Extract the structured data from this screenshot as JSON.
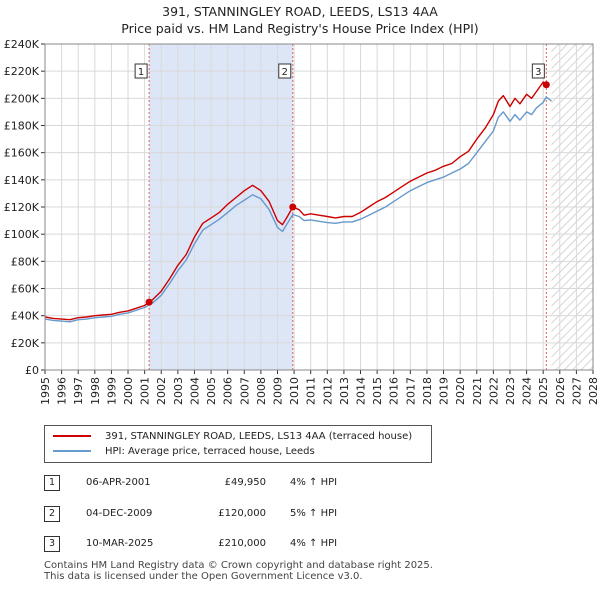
{
  "title_line1": "391, STANNINGLEY ROAD, LEEDS, LS13 4AA",
  "title_line2": "Price paid vs. HM Land Registry's House Price Index (HPI)",
  "colors": {
    "property": "#cc0000",
    "hpi": "#6699cc",
    "shade": "#dde6f7",
    "marker_line": "#e06060"
  },
  "chart_data": {
    "type": "line",
    "title": "391, STANNINGLEY ROAD, LEEDS, LS13 4AA — Price paid vs. HM Land Registry's House Price Index (HPI)",
    "xlim": [
      1995,
      2028
    ],
    "ylim": [
      0,
      240000
    ],
    "x_ticks": [
      "1995",
      "1996",
      "1997",
      "1998",
      "1999",
      "2000",
      "2001",
      "2002",
      "2003",
      "2004",
      "2005",
      "2006",
      "2007",
      "2008",
      "2009",
      "2010",
      "2011",
      "2012",
      "2013",
      "2014",
      "2015",
      "2016",
      "2017",
      "2018",
      "2019",
      "2020",
      "2021",
      "2022",
      "2023",
      "2024",
      "2025",
      "2026",
      "2027",
      "2028"
    ],
    "y_ticks": [
      {
        "value": 0,
        "label": "£0"
      },
      {
        "value": 20000,
        "label": "£20K"
      },
      {
        "value": 40000,
        "label": "£40K"
      },
      {
        "value": 60000,
        "label": "£60K"
      },
      {
        "value": 80000,
        "label": "£80K"
      },
      {
        "value": 100000,
        "label": "£100K"
      },
      {
        "value": 120000,
        "label": "£120K"
      },
      {
        "value": 140000,
        "label": "£140K"
      },
      {
        "value": 160000,
        "label": "£160K"
      },
      {
        "value": 180000,
        "label": "£180K"
      },
      {
        "value": 200000,
        "label": "£200K"
      },
      {
        "value": 220000,
        "label": "£220K"
      },
      {
        "value": 240000,
        "label": "£240K"
      }
    ],
    "series": [
      {
        "name": "391, STANNINGLEY ROAD, LEEDS, LS13 4AA (terraced house)",
        "x": [
          1995.0,
          1995.5,
          1996.0,
          1996.5,
          1997.0,
          1997.5,
          1998.0,
          1998.5,
          1999.0,
          1999.5,
          2000.0,
          2000.5,
          2001.0,
          2001.27,
          2001.5,
          2002.0,
          2002.5,
          2003.0,
          2003.5,
          2004.0,
          2004.5,
          2005.0,
          2005.5,
          2006.0,
          2006.5,
          2007.0,
          2007.5,
          2008.0,
          2008.5,
          2009.0,
          2009.3,
          2009.6,
          2009.92,
          2010.3,
          2010.6,
          2011.0,
          2011.5,
          2012.0,
          2012.5,
          2013.0,
          2013.5,
          2014.0,
          2014.5,
          2015.0,
          2015.5,
          2016.0,
          2016.5,
          2017.0,
          2017.5,
          2018.0,
          2018.5,
          2019.0,
          2019.5,
          2020.0,
          2020.5,
          2021.0,
          2021.5,
          2022.0,
          2022.3,
          2022.6,
          2023.0,
          2023.3,
          2023.6,
          2024.0,
          2024.3,
          2024.6,
          2025.0,
          2025.19
        ],
        "y": [
          39000,
          38000,
          37500,
          37000,
          38500,
          39000,
          40000,
          40500,
          41000,
          42500,
          43500,
          45500,
          47500,
          49950,
          52000,
          58000,
          67000,
          77000,
          85000,
          98000,
          108000,
          112000,
          116000,
          122000,
          127000,
          132000,
          136000,
          132000,
          124000,
          110000,
          107000,
          113000,
          120000,
          118000,
          114000,
          115000,
          114000,
          113000,
          112000,
          113000,
          113000,
          116000,
          120000,
          124000,
          127000,
          131000,
          135000,
          139000,
          142000,
          145000,
          147000,
          150000,
          152000,
          157000,
          161000,
          170000,
          178000,
          188000,
          198000,
          202000,
          194000,
          200000,
          196000,
          203000,
          200000,
          205000,
          212000,
          210000
        ]
      },
      {
        "name": "HPI: Average price, terraced house, Leeds",
        "x": [
          1995.0,
          1995.5,
          1996.0,
          1996.5,
          1997.0,
          1997.5,
          1998.0,
          1998.5,
          1999.0,
          1999.5,
          2000.0,
          2000.5,
          2001.0,
          2001.5,
          2002.0,
          2002.5,
          2003.0,
          2003.5,
          2004.0,
          2004.5,
          2005.0,
          2005.5,
          2006.0,
          2006.5,
          2007.0,
          2007.5,
          2008.0,
          2008.5,
          2009.0,
          2009.3,
          2009.6,
          2009.92,
          2010.3,
          2010.6,
          2011.0,
          2011.5,
          2012.0,
          2012.5,
          2013.0,
          2013.5,
          2014.0,
          2014.5,
          2015.0,
          2015.5,
          2016.0,
          2016.5,
          2017.0,
          2017.5,
          2018.0,
          2018.5,
          2019.0,
          2019.5,
          2020.0,
          2020.5,
          2021.0,
          2021.5,
          2022.0,
          2022.3,
          2022.6,
          2023.0,
          2023.3,
          2023.6,
          2024.0,
          2024.3,
          2024.6,
          2025.0,
          2025.19,
          2025.5
        ],
        "y": [
          37500,
          36500,
          36000,
          35500,
          37000,
          37500,
          38500,
          39000,
          39500,
          41000,
          42000,
          44000,
          46000,
          49500,
          55000,
          63500,
          73000,
          81000,
          93000,
          103000,
          107000,
          111000,
          116000,
          121000,
          125000,
          129000,
          126000,
          118000,
          105000,
          102000,
          108000,
          114500,
          113000,
          110000,
          110500,
          109500,
          108500,
          108000,
          109000,
          109000,
          111000,
          114000,
          117000,
          120000,
          124000,
          128000,
          132000,
          135000,
          138000,
          140000,
          142000,
          145000,
          148000,
          152000,
          160000,
          168000,
          176000,
          186000,
          190000,
          183000,
          188000,
          184000,
          190000,
          188000,
          193000,
          197000,
          201000,
          198000
        ]
      }
    ],
    "sale_markers": [
      {
        "label": "1",
        "x": 2001.27,
        "y": 49950
      },
      {
        "label": "2",
        "x": 2009.92,
        "y": 120000
      },
      {
        "label": "3",
        "x": 2025.19,
        "y": 210000
      }
    ],
    "shaded_range": [
      2001.27,
      2009.92
    ],
    "future_hatch_from": 2025.5
  },
  "legend": {
    "property_label": "391, STANNINGLEY ROAD, LEEDS, LS13 4AA (terraced house)",
    "hpi_label": "HPI: Average price, terraced house, Leeds"
  },
  "sales": [
    {
      "num": "1",
      "date": "06-APR-2001",
      "price": "£49,950",
      "hpi": "4% ↑ HPI"
    },
    {
      "num": "2",
      "date": "04-DEC-2009",
      "price": "£120,000",
      "hpi": "5% ↑ HPI"
    },
    {
      "num": "3",
      "date": "10-MAR-2025",
      "price": "£210,000",
      "hpi": "4% ↑ HPI"
    }
  ],
  "footer": {
    "line1": "Contains HM Land Registry data © Crown copyright and database right 2025.",
    "line2": "This data is licensed under the Open Government Licence v3.0."
  }
}
